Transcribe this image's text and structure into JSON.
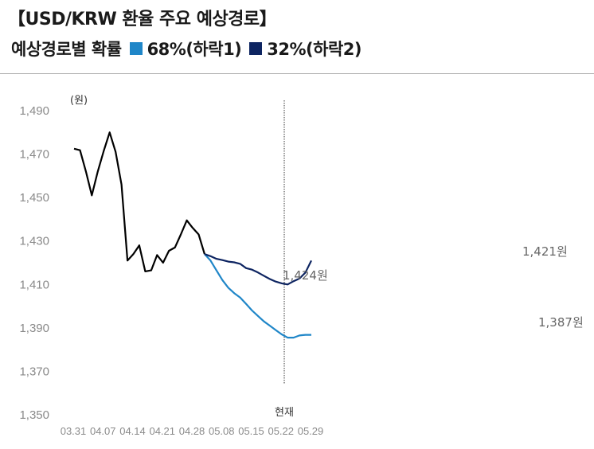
{
  "header": {
    "title": "【USD/KRW 환율 주요 예상경로】",
    "subtitle_prefix": "예상경로별 확률",
    "legend": [
      {
        "label": "68%(하락1)",
        "color": "#1f86c8"
      },
      {
        "label": "32%(하락2)",
        "color": "#0d2461"
      }
    ]
  },
  "chart_data": {
    "type": "line",
    "ylabel": "(원)",
    "ylim": [
      1350,
      1490
    ],
    "yticks": [
      "1,350",
      "1,370",
      "1,390",
      "1,410",
      "1,430",
      "1,450",
      "1,470",
      "1,490"
    ],
    "ytick_values": [
      1350,
      1370,
      1390,
      1410,
      1430,
      1450,
      1470,
      1490
    ],
    "xticks": [
      "03.31",
      "04.07",
      "04.14",
      "04.21",
      "04.28",
      "05.08",
      "05.15",
      "05.22",
      "05.29"
    ],
    "now_label": "현재",
    "now_index": 11.5,
    "series": [
      {
        "color": "#000000",
        "values": [
          [
            0,
            1472.5
          ],
          [
            0.5,
            1471.8
          ],
          [
            1,
            1462
          ],
          [
            1.5,
            1451
          ],
          [
            2,
            1462
          ],
          [
            2.5,
            1471.5
          ],
          [
            3,
            1480
          ],
          [
            3.5,
            1471
          ],
          [
            4,
            1456
          ],
          [
            4.5,
            1421
          ],
          [
            5,
            1424
          ],
          [
            5.5,
            1428
          ],
          [
            6,
            1416
          ],
          [
            6.5,
            1416.5
          ],
          [
            7,
            1423.5
          ],
          [
            7.5,
            1420
          ],
          [
            8,
            1425.5
          ],
          [
            8.5,
            1427
          ],
          [
            9,
            1433
          ],
          [
            9.5,
            1439.5
          ],
          [
            10,
            1436
          ],
          [
            10.5,
            1433
          ],
          [
            11,
            1424
          ]
        ]
      },
      {
        "color": "#1f86c8",
        "values": [
          [
            11,
            1424
          ],
          [
            11.5,
            1421
          ],
          [
            12,
            1416.5
          ],
          [
            12.5,
            1412
          ],
          [
            13,
            1408.5
          ],
          [
            13.5,
            1406
          ],
          [
            14,
            1404
          ],
          [
            14.5,
            1401
          ],
          [
            15,
            1398
          ],
          [
            15.5,
            1395.5
          ],
          [
            16,
            1393
          ],
          [
            16.5,
            1391
          ],
          [
            17,
            1389
          ],
          [
            17.5,
            1387
          ],
          [
            18,
            1385.5
          ],
          [
            18.5,
            1385.5
          ],
          [
            19,
            1386.5
          ],
          [
            19.5,
            1386.8
          ],
          [
            20,
            1386.8
          ]
        ]
      },
      {
        "color": "#0d2461",
        "values": [
          [
            11,
            1424
          ],
          [
            11.5,
            1423
          ],
          [
            12,
            1421.8
          ],
          [
            12.5,
            1421.2
          ],
          [
            13,
            1420.5
          ],
          [
            13.5,
            1420.2
          ],
          [
            14,
            1419.5
          ],
          [
            14.5,
            1417.5
          ],
          [
            15,
            1416.8
          ],
          [
            15.5,
            1415.5
          ],
          [
            16,
            1414
          ],
          [
            16.5,
            1412.5
          ],
          [
            17,
            1411.3
          ],
          [
            17.5,
            1410.5
          ],
          [
            18,
            1410
          ],
          [
            18.5,
            1411.5
          ],
          [
            19,
            1412.7
          ],
          [
            19.5,
            1415.5
          ],
          [
            20,
            1421
          ]
        ]
      }
    ],
    "annotations": [
      {
        "text": "1,424원",
        "value": 1424
      },
      {
        "text": "1,421원",
        "value": 1421
      },
      {
        "text": "1,387원",
        "value": 1387
      }
    ]
  }
}
